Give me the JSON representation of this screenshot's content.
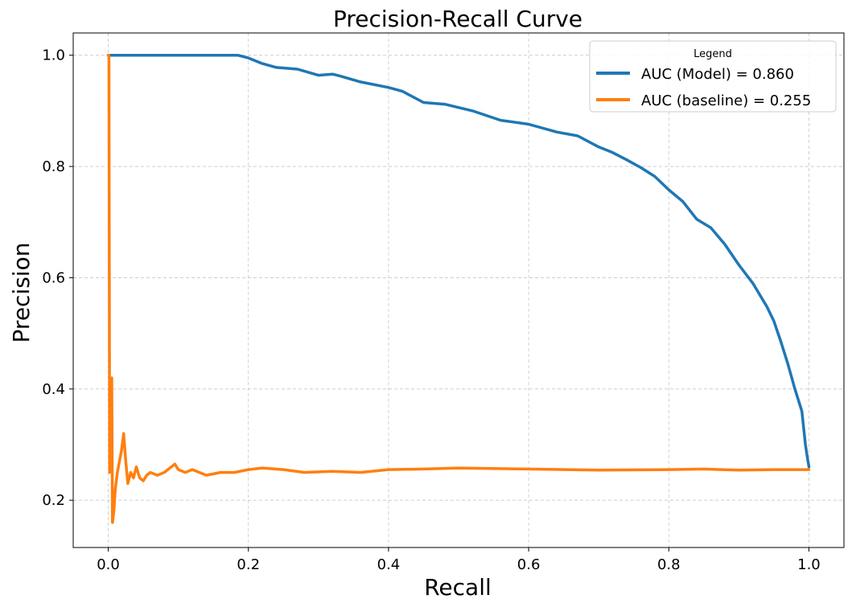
{
  "chart_data": {
    "type": "line",
    "title": "Precision-Recall Curve",
    "xlabel": "Recall",
    "ylabel": "Precision",
    "xlim": [
      -0.05,
      1.05
    ],
    "ylim": [
      0.115,
      1.04
    ],
    "xticks": [
      0.0,
      0.2,
      0.4,
      0.6,
      0.8,
      1.0
    ],
    "xtick_labels": [
      "0.0",
      "0.2",
      "0.4",
      "0.6",
      "0.8",
      "1.0"
    ],
    "yticks": [
      0.2,
      0.4,
      0.6,
      0.8,
      1.0
    ],
    "ytick_labels": [
      "0.2",
      "0.4",
      "0.6",
      "0.8",
      "1.0"
    ],
    "grid": true,
    "legend": {
      "title": "Legend",
      "placement": "top-right"
    },
    "series": [
      {
        "name": "AUC (Model) = 0.860",
        "color": "#1f77b4",
        "x": [
          0.0,
          0.05,
          0.1,
          0.15,
          0.185,
          0.2,
          0.22,
          0.24,
          0.27,
          0.3,
          0.32,
          0.33,
          0.36,
          0.4,
          0.42,
          0.45,
          0.48,
          0.52,
          0.56,
          0.6,
          0.64,
          0.67,
          0.7,
          0.72,
          0.74,
          0.76,
          0.78,
          0.8,
          0.82,
          0.84,
          0.86,
          0.88,
          0.9,
          0.92,
          0.94,
          0.95,
          0.96,
          0.97,
          0.98,
          0.99,
          0.995,
          0.998,
          1.0
        ],
        "y": [
          1.0,
          1.0,
          1.0,
          1.0,
          1.0,
          0.995,
          0.985,
          0.978,
          0.975,
          0.964,
          0.966,
          0.963,
          0.952,
          0.942,
          0.935,
          0.915,
          0.912,
          0.9,
          0.883,
          0.876,
          0.862,
          0.855,
          0.835,
          0.825,
          0.812,
          0.798,
          0.782,
          0.758,
          0.737,
          0.705,
          0.69,
          0.66,
          0.623,
          0.59,
          0.548,
          0.522,
          0.485,
          0.445,
          0.4,
          0.36,
          0.3,
          0.275,
          0.26
        ]
      },
      {
        "name": "AUC (baseline) = 0.255",
        "color": "#ff7f0e",
        "x": [
          0.0,
          0.001,
          0.002,
          0.003,
          0.004,
          0.005,
          0.006,
          0.008,
          0.01,
          0.013,
          0.016,
          0.019,
          0.022,
          0.025,
          0.028,
          0.032,
          0.036,
          0.04,
          0.045,
          0.05,
          0.055,
          0.06,
          0.07,
          0.08,
          0.09,
          0.095,
          0.1,
          0.11,
          0.12,
          0.14,
          0.16,
          0.18,
          0.2,
          0.22,
          0.25,
          0.28,
          0.32,
          0.36,
          0.4,
          0.45,
          0.5,
          0.6,
          0.7,
          0.8,
          0.85,
          0.9,
          0.95,
          1.0
        ],
        "y": [
          1.0,
          1.0,
          0.25,
          0.33,
          0.4,
          0.42,
          0.16,
          0.18,
          0.22,
          0.25,
          0.27,
          0.29,
          0.32,
          0.27,
          0.23,
          0.25,
          0.24,
          0.26,
          0.24,
          0.235,
          0.245,
          0.25,
          0.245,
          0.25,
          0.26,
          0.265,
          0.255,
          0.25,
          0.255,
          0.245,
          0.25,
          0.25,
          0.255,
          0.258,
          0.255,
          0.25,
          0.252,
          0.25,
          0.255,
          0.256,
          0.258,
          0.256,
          0.254,
          0.255,
          0.256,
          0.254,
          0.255,
          0.255
        ]
      }
    ]
  }
}
